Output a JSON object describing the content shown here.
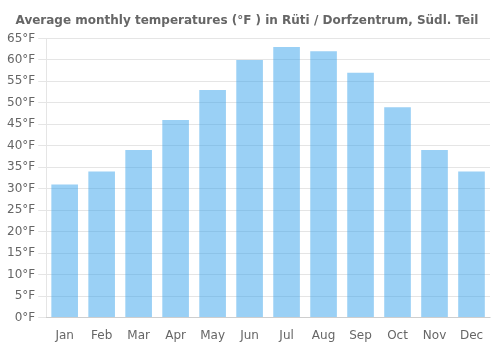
{
  "chart_data": {
    "type": "bar",
    "title": "Average monthly temperatures (°F ) in Rüti / Dorfzentrum, Südl. Teil",
    "categories": [
      "Jan",
      "Feb",
      "Mar",
      "Apr",
      "May",
      "Jun",
      "Jul",
      "Aug",
      "Sep",
      "Oct",
      "Nov",
      "Dec"
    ],
    "values": [
      31,
      34,
      39,
      46,
      53,
      60,
      63,
      62,
      57,
      49,
      39,
      34
    ],
    "ylim": [
      0,
      65
    ],
    "yticks": [
      {
        "value": 0,
        "label": "0°F"
      },
      {
        "value": 5,
        "label": "5°F"
      },
      {
        "value": 10,
        "label": "10°F"
      },
      {
        "value": 15,
        "label": "15°F"
      },
      {
        "value": 20,
        "label": "20°F"
      },
      {
        "value": 25,
        "label": "25°F"
      },
      {
        "value": 30,
        "label": "30°F"
      },
      {
        "value": 35,
        "label": "35°F"
      },
      {
        "value": 40,
        "label": "40°F"
      },
      {
        "value": 45,
        "label": "45°F"
      },
      {
        "value": 50,
        "label": "50°F"
      },
      {
        "value": 55,
        "label": "55°F"
      },
      {
        "value": 60,
        "label": "60°F"
      },
      {
        "value": 65,
        "label": "65°F"
      }
    ],
    "grid": true
  }
}
